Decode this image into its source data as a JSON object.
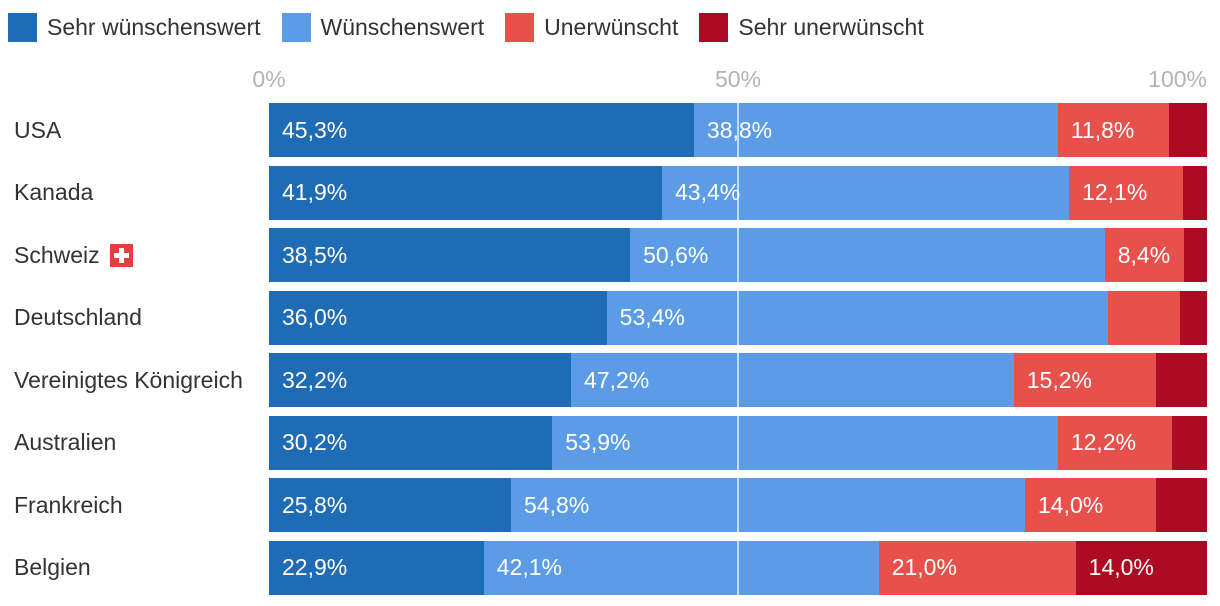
{
  "legend": {
    "items": [
      {
        "label": "Sehr wünschenswert",
        "color": "#1e6cb5"
      },
      {
        "label": "Wünschenswert",
        "color": "#5c9ce6"
      },
      {
        "label": "Unerwünscht",
        "color": "#e8504b"
      },
      {
        "label": "Sehr unerwünscht",
        "color": "#ad0b23"
      }
    ]
  },
  "chart_data": {
    "type": "bar",
    "variant": "horizontal-stacked",
    "unit": "percent",
    "xlim": [
      0,
      100
    ],
    "x_ticks": [
      {
        "label": "0%",
        "value": 0
      },
      {
        "label": "50%",
        "value": 50
      },
      {
        "label": "100%",
        "value": 100
      }
    ],
    "gridline_value": 50,
    "legend_position": "top-left",
    "categories": [
      "USA",
      "Kanada",
      "Schweiz",
      "Deutschland",
      "Vereinigtes Königreich",
      "Australien",
      "Frankreich",
      "Belgien"
    ],
    "category_icons": [
      "",
      "",
      "swiss-flag-icon",
      "",
      "",
      "",
      "",
      ""
    ],
    "series": [
      {
        "name": "Sehr wünschenswert",
        "color": "#1e6cb5",
        "values": [
          45.3,
          41.9,
          38.5,
          36.0,
          32.2,
          30.2,
          25.8,
          22.9
        ]
      },
      {
        "name": "Wünschenswert",
        "color": "#5c9ce6",
        "values": [
          38.8,
          43.4,
          50.6,
          53.4,
          47.2,
          53.9,
          54.8,
          42.1
        ]
      },
      {
        "name": "Unerwünscht",
        "color": "#e8504b",
        "values": [
          11.8,
          12.1,
          8.4,
          7.7,
          15.2,
          12.2,
          14.0,
          21.0
        ]
      },
      {
        "name": "Sehr unerwünscht",
        "color": "#ad0b23",
        "values": [
          4.1,
          2.6,
          2.5,
          2.9,
          5.4,
          3.7,
          5.4,
          14.0
        ]
      }
    ],
    "segment_labels": [
      [
        "45,3%",
        "38,8%",
        "11,8%",
        ""
      ],
      [
        "41,9%",
        "43,4%",
        "12,1%",
        ""
      ],
      [
        "38,5%",
        "50,6%",
        "8,4%",
        ""
      ],
      [
        "36,0%",
        "53,4%",
        "",
        ""
      ],
      [
        "32,2%",
        "47,2%",
        "15,2%",
        ""
      ],
      [
        "30,2%",
        "53,9%",
        "12,2%",
        ""
      ],
      [
        "25,8%",
        "54,8%",
        "14,0%",
        ""
      ],
      [
        "22,9%",
        "42,1%",
        "21,0%",
        "14,0%"
      ]
    ]
  },
  "colors": {
    "background": "#ffffff",
    "row_label_text": "#333333",
    "axis_tick_text": "#b3b3b3",
    "bar_value_text": "#ffffff",
    "gridline": "rgba(255,255,255,0.65)",
    "swiss_flag_red": "#e73d3f"
  }
}
